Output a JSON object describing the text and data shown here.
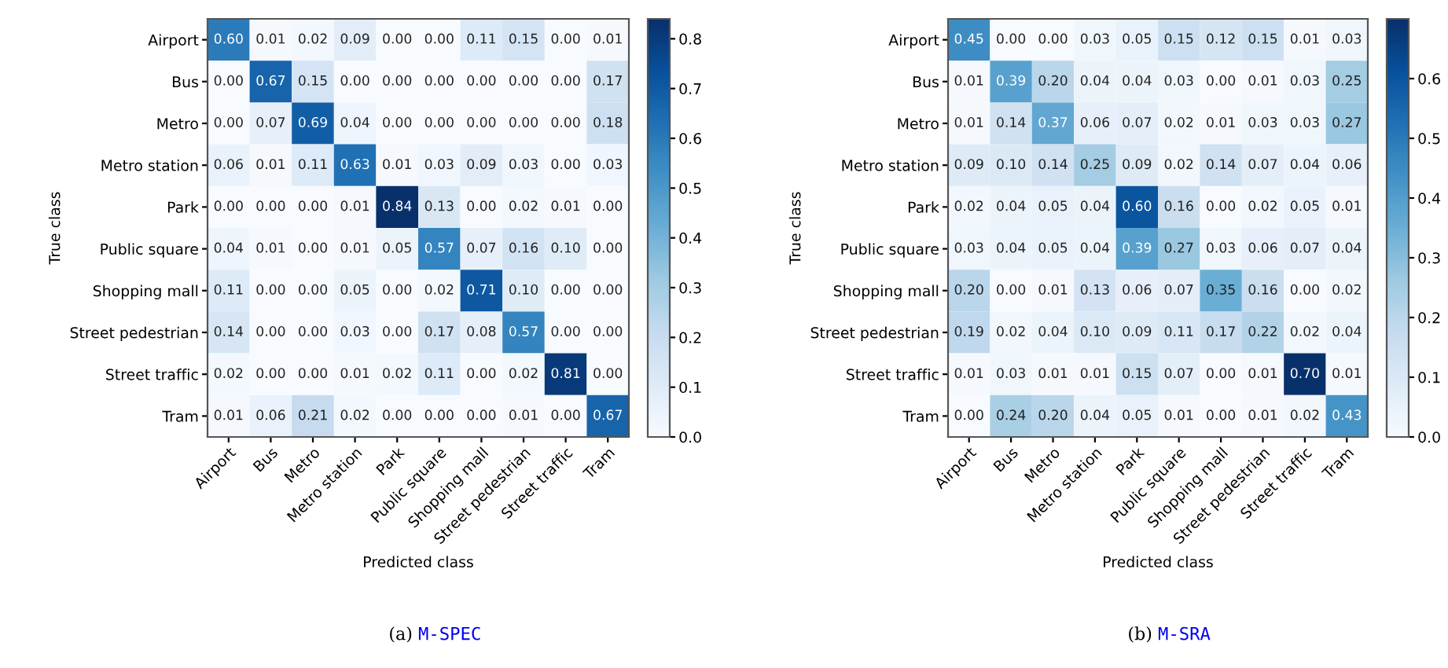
{
  "chart_data": [
    {
      "type": "heatmap",
      "xlabel": "Predicted class",
      "ylabel": "True class",
      "categories": [
        "Airport",
        "Bus",
        "Metro",
        "Metro station",
        "Park",
        "Public square",
        "Shopping mall",
        "Street pedestrian",
        "Street traffic",
        "Tram"
      ],
      "y_categories": [
        "Airport",
        "Bus",
        "Metro",
        "Metro station",
        "Park",
        "Public square",
        "Shopping mall",
        "Street pedestrian",
        "Street traffic",
        "Tram"
      ],
      "cells": [
        [
          0.6,
          0.01,
          0.02,
          0.09,
          0.0,
          0.0,
          0.11,
          0.15,
          0.0,
          0.01
        ],
        [
          0.0,
          0.67,
          0.15,
          0.0,
          0.0,
          0.0,
          0.0,
          0.0,
          0.0,
          0.17
        ],
        [
          0.0,
          0.07,
          0.69,
          0.04,
          0.0,
          0.0,
          0.0,
          0.0,
          0.0,
          0.18
        ],
        [
          0.06,
          0.01,
          0.11,
          0.63,
          0.01,
          0.03,
          0.09,
          0.03,
          0.0,
          0.03
        ],
        [
          0.0,
          0.0,
          0.0,
          0.01,
          0.84,
          0.13,
          0.0,
          0.02,
          0.01,
          0.0
        ],
        [
          0.04,
          0.01,
          0.0,
          0.01,
          0.05,
          0.57,
          0.07,
          0.16,
          0.1,
          0.0
        ],
        [
          0.11,
          0.0,
          0.0,
          0.05,
          0.0,
          0.02,
          0.71,
          0.1,
          0.0,
          0.0
        ],
        [
          0.14,
          0.0,
          0.0,
          0.03,
          0.0,
          0.17,
          0.08,
          0.57,
          0.0,
          0.0
        ],
        [
          0.02,
          0.0,
          0.0,
          0.01,
          0.02,
          0.11,
          0.0,
          0.02,
          0.81,
          0.0
        ],
        [
          0.01,
          0.06,
          0.21,
          0.02,
          0.0,
          0.0,
          0.0,
          0.01,
          0.0,
          0.67
        ]
      ],
      "cell_labels": [
        [
          "0.60",
          "0.01",
          "0.02",
          "0.09",
          "0.00",
          "0.00",
          "0.11",
          "0.15",
          "0.00",
          "0.01"
        ],
        [
          "0.00",
          "0.67",
          "0.15",
          "0.00",
          "0.00",
          "0.00",
          "0.00",
          "0.00",
          "0.00",
          "0.17"
        ],
        [
          "0.00",
          "0.07",
          "0.69",
          "0.04",
          "0.00",
          "0.00",
          "0.00",
          "0.00",
          "0.00",
          "0.18"
        ],
        [
          "0.06",
          "0.01",
          "0.11",
          "0.63",
          "0.01",
          "0.03",
          "0.09",
          "0.03",
          "0.00",
          "0.03"
        ],
        [
          "0.00",
          "0.00",
          "0.00",
          "0.01",
          "0.84",
          "0.13",
          "0.00",
          "0.02",
          "0.01",
          "0.00"
        ],
        [
          "0.04",
          "0.01",
          "0.00",
          "0.01",
          "0.05",
          "0.57",
          "0.07",
          "0.16",
          "0.10",
          "0.00"
        ],
        [
          "0.11",
          "0.00",
          "0.00",
          "0.05",
          "0.00",
          "0.02",
          "0.71",
          "0.10",
          "0.00",
          "0.00"
        ],
        [
          "0.14",
          "0.00",
          "0.00",
          "0.03",
          "0.00",
          "0.17",
          "0.08",
          "0.57",
          "0.00",
          "0.00"
        ],
        [
          "0.02",
          "0.00",
          "0.00",
          "0.01",
          "0.02",
          "0.11",
          "0.00",
          "0.02",
          "0.81",
          "0.00"
        ],
        [
          "0.01",
          "0.06",
          "0.21",
          "0.02",
          "0.00",
          "0.00",
          "0.00",
          "0.01",
          "0.00",
          "0.67"
        ]
      ],
      "data_labels": true,
      "clim": [
        0,
        0.84
      ],
      "cticks": [
        {
          "value": 0,
          "label": "0.0"
        },
        0.1,
        0.2,
        0.3,
        0.4,
        0.5,
        0.6,
        0.7,
        0.8
      ],
      "annotations": [
        "(a) M-SPEC"
      ]
    },
    {
      "type": "heatmap",
      "xlabel": "Predicted class",
      "ylabel": "True class",
      "categories": [
        "Airport",
        "Bus",
        "Metro",
        "Metro station",
        "Park",
        "Public square",
        "Shopping mall",
        "Street pedestrian",
        "Street traffic",
        "Tram"
      ],
      "y_categories": [
        "Airport",
        "Bus",
        "Metro",
        "Metro station",
        "Park",
        "Public square",
        "Shopping mall",
        "Street pedestrian",
        "Street traffic",
        "Tram"
      ],
      "cells": [
        [
          0.45,
          0.0,
          0.0,
          0.03,
          0.05,
          0.15,
          0.12,
          0.15,
          0.01,
          0.03
        ],
        [
          0.01,
          0.39,
          0.2,
          0.04,
          0.04,
          0.03,
          0.0,
          0.01,
          0.03,
          0.25
        ],
        [
          0.01,
          0.14,
          0.37,
          0.06,
          0.07,
          0.02,
          0.01,
          0.03,
          0.03,
          0.27
        ],
        [
          0.09,
          0.1,
          0.14,
          0.25,
          0.09,
          0.02,
          0.14,
          0.07,
          0.04,
          0.06
        ],
        [
          0.02,
          0.04,
          0.05,
          0.04,
          0.6,
          0.16,
          0.0,
          0.02,
          0.05,
          0.01
        ],
        [
          0.03,
          0.04,
          0.05,
          0.04,
          0.39,
          0.27,
          0.03,
          0.06,
          0.07,
          0.04
        ],
        [
          0.2,
          0.0,
          0.01,
          0.13,
          0.06,
          0.07,
          0.35,
          0.16,
          0.0,
          0.02
        ],
        [
          0.19,
          0.02,
          0.04,
          0.1,
          0.09,
          0.11,
          0.17,
          0.22,
          0.02,
          0.04
        ],
        [
          0.01,
          0.03,
          0.01,
          0.01,
          0.15,
          0.07,
          0.0,
          0.01,
          0.7,
          0.01
        ],
        [
          0.0,
          0.24,
          0.2,
          0.04,
          0.05,
          0.01,
          0.0,
          0.01,
          0.02,
          0.43
        ]
      ],
      "cell_labels": [
        [
          "0.45",
          "0.00",
          "0.00",
          "0.03",
          "0.05",
          "0.15",
          "0.12",
          "0.15",
          "0.01",
          "0.03"
        ],
        [
          "0.01",
          "0.39",
          "0.20",
          "0.04",
          "0.04",
          "0.03",
          "0.00",
          "0.01",
          "0.03",
          "0.25"
        ],
        [
          "0.01",
          "0.14",
          "0.37",
          "0.06",
          "0.07",
          "0.02",
          "0.01",
          "0.03",
          "0.03",
          "0.27"
        ],
        [
          "0.09",
          "0.10",
          "0.14",
          "0.25",
          "0.09",
          "0.02",
          "0.14",
          "0.07",
          "0.04",
          "0.06"
        ],
        [
          "0.02",
          "0.04",
          "0.05",
          "0.04",
          "0.60",
          "0.16",
          "0.00",
          "0.02",
          "0.05",
          "0.01"
        ],
        [
          "0.03",
          "0.04",
          "0.05",
          "0.04",
          "0.39",
          "0.27",
          "0.03",
          "0.06",
          "0.07",
          "0.04"
        ],
        [
          "0.20",
          "0.00",
          "0.01",
          "0.13",
          "0.06",
          "0.07",
          "0.35",
          "0.16",
          "0.00",
          "0.02"
        ],
        [
          "0.19",
          "0.02",
          "0.04",
          "0.10",
          "0.09",
          "0.11",
          "0.17",
          "0.22",
          "0.02",
          "0.04"
        ],
        [
          "0.01",
          "0.03",
          "0.01",
          "0.01",
          "0.15",
          "0.07",
          "0.00",
          "0.01",
          "0.70",
          "0.01"
        ],
        [
          "0.00",
          "0.24",
          "0.20",
          "0.04",
          "0.05",
          "0.01",
          "0.00",
          "0.01",
          "0.02",
          "0.43"
        ]
      ],
      "data_labels": true,
      "clim": [
        0,
        0.7
      ],
      "cticks": [
        {
          "value": 0,
          "label": "0.0"
        },
        0.1,
        0.2,
        0.3,
        0.4,
        0.5,
        0.6
      ],
      "annotations": [
        "(b) M-SRA"
      ]
    }
  ]
}
